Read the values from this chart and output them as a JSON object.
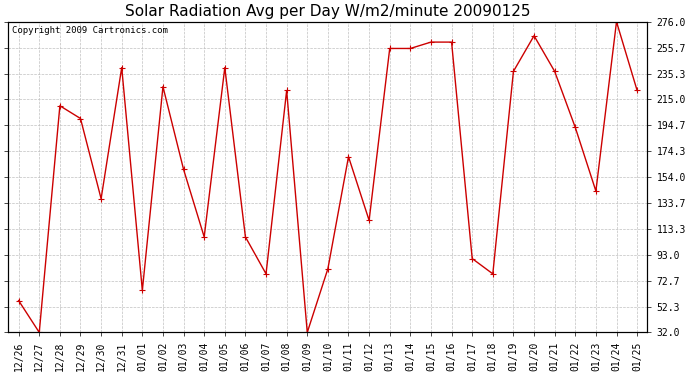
{
  "title": "Solar Radiation Avg per Day W/m2/minute 20090125",
  "copyright": "Copyright 2009 Cartronics.com",
  "labels": [
    "12/26",
    "12/27",
    "12/28",
    "12/29",
    "12/30",
    "12/31",
    "01/01",
    "01/02",
    "01/03",
    "01/04",
    "01/05",
    "01/06",
    "01/07",
    "01/08",
    "01/09",
    "01/10",
    "01/11",
    "01/12",
    "01/13",
    "01/14",
    "01/15",
    "01/16",
    "01/17",
    "01/18",
    "01/19",
    "01/20",
    "01/21",
    "01/22",
    "01/23",
    "01/24",
    "01/25"
  ],
  "values": [
    57,
    32,
    210,
    200,
    137,
    240,
    65,
    225,
    160,
    107,
    240,
    107,
    78,
    222,
    32,
    82,
    170,
    120,
    255,
    255,
    260,
    260,
    90,
    78,
    237,
    265,
    237,
    193,
    143,
    276,
    222
  ],
  "line_color": "#cc0000",
  "marker": "+",
  "background_color": "#ffffff",
  "plot_bg_color": "#ffffff",
  "grid_color": "#c0c0c0",
  "ytick_labels": [
    "32.0",
    "52.3",
    "72.7",
    "93.0",
    "113.3",
    "133.7",
    "154.0",
    "174.3",
    "194.7",
    "215.0",
    "235.3",
    "255.7",
    "276.0"
  ],
  "ytick_values": [
    32.0,
    52.3,
    72.7,
    93.0,
    113.3,
    133.7,
    154.0,
    174.3,
    194.7,
    215.0,
    235.3,
    255.7,
    276.0
  ],
  "ymin": 32.0,
  "ymax": 276.0,
  "title_fontsize": 11,
  "copyright_fontsize": 6.5,
  "tick_fontsize": 7,
  "marker_size": 4
}
